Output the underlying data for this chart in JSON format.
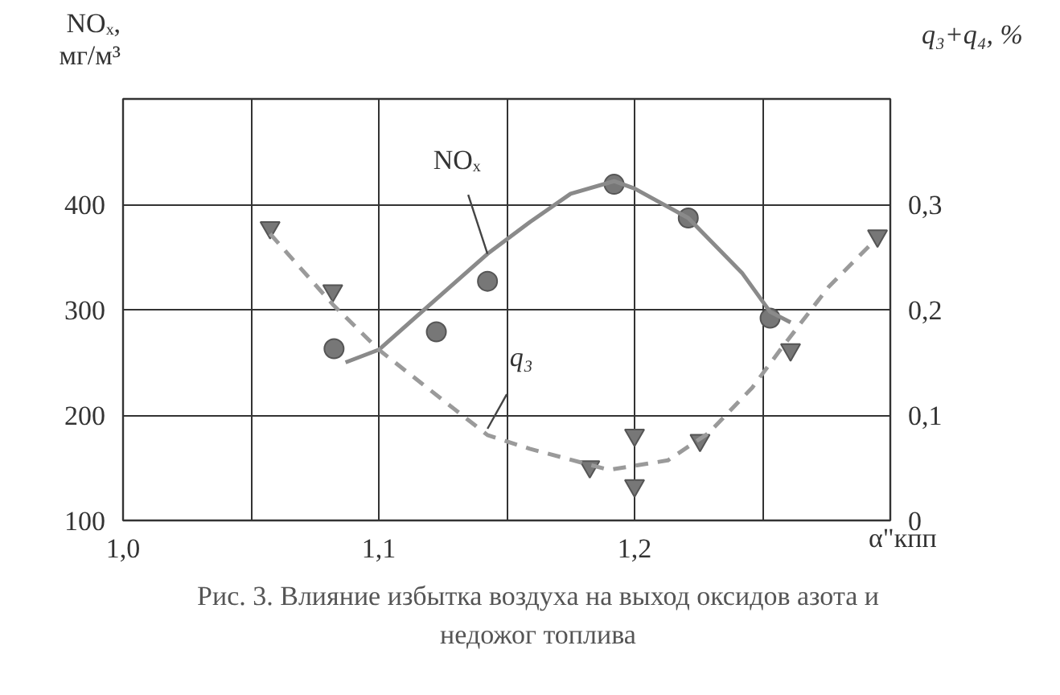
{
  "chart_data": {
    "type": "line",
    "xlabel": "α\"кпп",
    "ylabel": "NOₓ, мг/м³",
    "y2label": "q₃+q₄, %",
    "xlim": [
      1.0,
      1.3
    ],
    "xticks": [
      {
        "value": 1.0,
        "label": "1,0"
      },
      {
        "value": 1.05,
        "label": null
      },
      {
        "value": 1.1,
        "label": "1,1"
      },
      {
        "value": 1.15,
        "label": null
      },
      {
        "value": 1.2,
        "label": "1,2"
      },
      {
        "value": 1.25,
        "label": null
      }
    ],
    "ylim": [
      100,
      500
    ],
    "yticks": [
      100,
      200,
      300,
      400
    ],
    "y2lim": [
      0,
      0.4
    ],
    "y2ticks": [
      0,
      {
        "value": 0.1,
        "label": "0,1"
      },
      {
        "value": 0.2,
        "label": "0,2"
      },
      {
        "value": 0.3,
        "label": "0,3"
      }
    ],
    "grid": true,
    "series": [
      {
        "type": "scatter",
        "marker": "circle",
        "color": "#777777",
        "x": [
          1.0825,
          1.1225,
          1.1425,
          1.192,
          1.221,
          1.253
        ],
        "values": [
          263,
          279,
          327,
          419,
          387,
          292
        ]
      },
      {
        "line_style": "solid",
        "color": "#8a8a8a",
        "x": [
          1.087,
          1.1,
          1.1425,
          1.159,
          1.175,
          1.192,
          1.2,
          1.221,
          1.242,
          1.253,
          1.261
        ],
        "values": [
          250,
          262,
          353,
          383,
          410,
          422,
          415,
          387,
          335,
          298,
          288
        ]
      },
      {
        "type": "scatter",
        "marker": "triangle",
        "axis": "y2",
        "color": "#777777",
        "x": [
          1.0575,
          1.082,
          1.1825,
          1.2,
          1.2,
          1.2256,
          1.261,
          1.295
        ],
        "values": [
          0.278,
          0.218,
          0.051,
          0.081,
          0.033,
          0.076,
          0.162,
          0.27
        ]
      },
      {
        "line_style": "dashed",
        "axis": "y2",
        "color": "#9a9a9a",
        "x": [
          1.0575,
          1.082,
          1.1,
          1.1425,
          1.159,
          1.19,
          1.213,
          1.229,
          1.246,
          1.257,
          1.276,
          1.294
        ],
        "values": [
          0.272,
          0.205,
          0.162,
          0.081,
          0.068,
          0.048,
          0.057,
          0.083,
          0.126,
          0.162,
          0.222,
          0.266
        ]
      }
    ],
    "annotations": [
      {
        "text": "NOₓ",
        "x": 1.1425,
        "y": 353
      },
      {
        "text": "q₃",
        "x": 1.1425,
        "y": 187
      },
      "Рис. 3. Влияние избытка воздуха на выход оксидов азота и недожог топлива"
    ]
  }
}
